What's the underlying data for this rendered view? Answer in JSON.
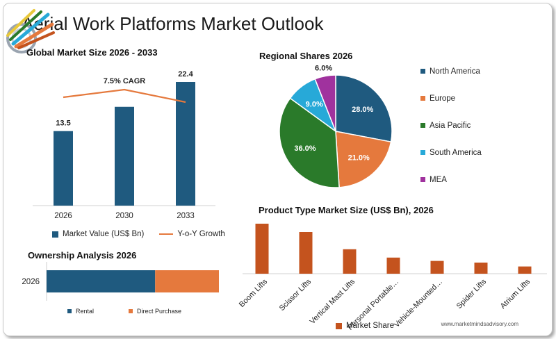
{
  "header": {
    "title": "Aerial Work Platforms Market Outlook"
  },
  "colors": {
    "navy": "#1f5a7f",
    "orange": "#e5793d",
    "rust": "#c4531e",
    "green": "#2a7a2a",
    "cyan": "#27a9d8",
    "purple": "#a0329e"
  },
  "watermark": "www.marketmindsadvisory.com",
  "chart_data": [
    {
      "type": "bar",
      "title": "Global Market Size 2026 - 2033",
      "categories": [
        "2026",
        "2030",
        "2033"
      ],
      "series": [
        {
          "name": "Market Value (US$ Bn)",
          "values": [
            13.5,
            17.9,
            22.4
          ],
          "labels": [
            "13.5",
            "",
            "22.4"
          ]
        }
      ],
      "line_series": {
        "name": "Y-o-Y Growth",
        "annotation": "7.5% CAGR"
      },
      "color": "#1f5a7f",
      "line_color": "#e5793d"
    },
    {
      "type": "pie",
      "title": "Regional Shares 2026",
      "labels": [
        "North America",
        "Europe",
        "Asia Pacific",
        "South America",
        "MEA"
      ],
      "values": [
        28.0,
        21.0,
        36.0,
        9.0,
        6.0
      ],
      "value_labels": [
        "28.0%",
        "21.0%",
        "36.0%",
        "9.0%",
        "6.0%"
      ],
      "colors": [
        "#1f5a7f",
        "#e5793d",
        "#2a7a2a",
        "#27a9d8",
        "#a0329e"
      ],
      "legend_position": "right"
    },
    {
      "type": "bar",
      "title": "Product Type Market Size (US$ Bn), 2026",
      "categories": [
        "Boom Lifts",
        "Scissor Lifts",
        "Vertical Mast Lifts",
        "Personal Portable…",
        "Vehicle-Mounted…",
        "Spider Lifts",
        "Atrium Lifts"
      ],
      "series": [
        {
          "name": "Market Share",
          "values": [
            9.0,
            7.5,
            4.4,
            2.9,
            2.3,
            2.0,
            1.3
          ]
        }
      ],
      "color": "#c4531e"
    },
    {
      "type": "bar",
      "orientation": "horizontal-stacked",
      "title": "Ownership Analysis 2026",
      "categories": [
        "2026"
      ],
      "series": [
        {
          "name": "Rental",
          "values": [
            63
          ]
        },
        {
          "name": "Direct Purchase",
          "values": [
            37
          ]
        }
      ],
      "colors": [
        "#1f5a7f",
        "#e5793d"
      ]
    }
  ]
}
